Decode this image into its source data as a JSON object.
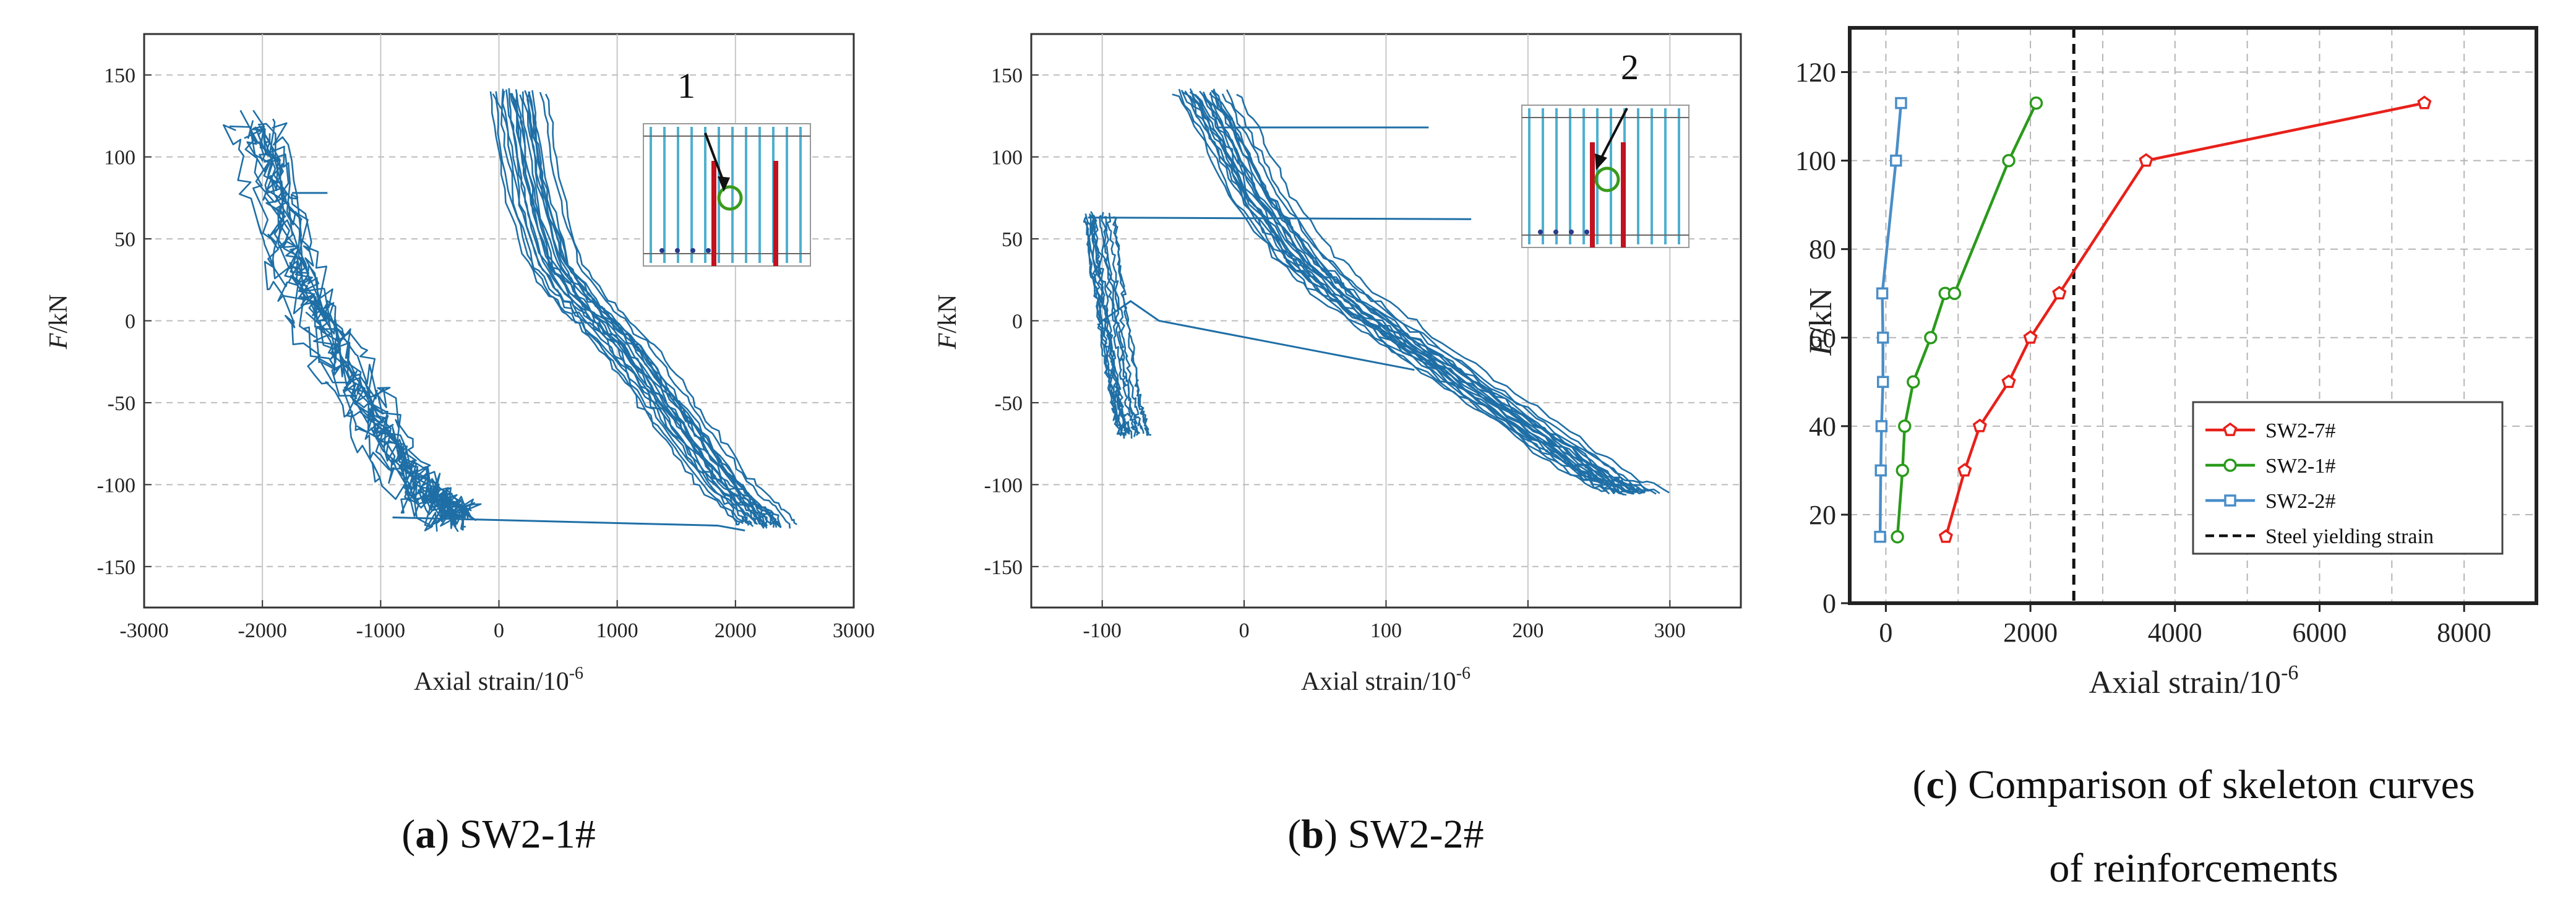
{
  "colors": {
    "hysteresis": "#1f6fa6",
    "sw2_7": "#e8201a",
    "sw2_1": "#2a9a1c",
    "sw2_2": "#4a8ec8",
    "yield": "#111111"
  },
  "chart_data": [
    {
      "id": "a",
      "type": "line",
      "caption_letter": "a",
      "caption_text": "SW2-1#",
      "ylabel_italic": "F",
      "ylabel_rest": "/kN",
      "xlabel_main": "Axial strain/10",
      "xlabel_exp": "-6",
      "xlim": [
        -3000,
        3000
      ],
      "ylim": [
        -175,
        175
      ],
      "xticks": [
        -3000,
        -2000,
        -1000,
        0,
        1000,
        2000,
        3000
      ],
      "yticks": [
        -150,
        -100,
        -50,
        0,
        50,
        100,
        150
      ],
      "grid": "solid vertical, dashed horizontal",
      "inset_marker": "1",
      "series": [
        {
          "values_description": "hysteresis loops",
          "branches": [
            {
              "x": [
                -2150,
                -2050,
                -1950,
                -1850,
                -1750,
                -1600,
                -1450,
                -1300,
                -1150,
                -1000,
                -850,
                -700,
                -600,
                -500,
                -450
              ],
              "y": [
                120,
                100,
                70,
                40,
                20,
                0,
                -20,
                -40,
                -60,
                -80,
                -95,
                -105,
                -110,
                -118,
                -120
              ]
            },
            {
              "x": [
                -10,
                50,
                150,
                300,
                500,
                700,
                900,
                1100,
                1300,
                1500,
                1700,
                1900,
                2050,
                2100
              ],
              "y": [
                140,
                110,
                70,
                35,
                15,
                0,
                -15,
                -35,
                -55,
                -75,
                -95,
                -110,
                -120,
                -125
              ]
            }
          ]
        }
      ]
    },
    {
      "id": "b",
      "type": "line",
      "caption_letter": "b",
      "caption_text": "SW2-2#",
      "ylabel_italic": "F",
      "ylabel_rest": "/kN",
      "xlabel_main": "Axial strain/10",
      "xlabel_exp": "-6",
      "xlim": [
        -150,
        350
      ],
      "ylim": [
        -175,
        175
      ],
      "xticks": [
        -100,
        0,
        100,
        200,
        300
      ],
      "yticks": [
        -150,
        -100,
        -50,
        0,
        50,
        100,
        150
      ],
      "grid": "solid vertical, dashed horizontal",
      "inset_marker": "2",
      "series": [
        {
          "values_description": "hysteresis loops",
          "branches": [
            {
              "x": [
                -110,
                -105,
                -100,
                -95,
                -90,
                -85
              ],
              "y": [
                65,
                30,
                0,
                -30,
                -55,
                -70
              ]
            },
            {
              "x": [
                -40,
                -20,
                0,
                30,
                60,
                100,
                150,
                200,
                240,
                265
              ],
              "y": [
                140,
                110,
                75,
                40,
                15,
                -10,
                -40,
                -70,
                -95,
                -105
              ]
            }
          ]
        }
      ]
    },
    {
      "id": "c",
      "type": "line",
      "caption_letter": "c",
      "caption_text": "Comparison of skeleton curves",
      "caption_text2": "of reinforcements",
      "ylabel_italic": "F",
      "ylabel_rest": "/kN",
      "xlabel_main": "Axial strain/10",
      "xlabel_exp": "-6",
      "xlim": [
        -500,
        9000
      ],
      "ylim": [
        0,
        130
      ],
      "xticks": [
        0,
        2000,
        4000,
        6000,
        8000
      ],
      "yticks": [
        0,
        20,
        40,
        60,
        80,
        100,
        120
      ],
      "grid": "dashed",
      "legend_position": "lower-right",
      "yield_strain": 2600,
      "series": [
        {
          "name": "SW2-7#",
          "marker": "pentagon",
          "x": [
            830,
            1090,
            1300,
            1700,
            2000,
            2400,
            3600,
            7450
          ],
          "y": [
            15,
            30,
            40,
            50,
            60,
            70,
            100,
            113
          ]
        },
        {
          "name": "SW2-1#",
          "marker": "circle",
          "x": [
            160,
            230,
            260,
            380,
            620,
            820,
            950,
            1700,
            2080
          ],
          "y": [
            15,
            30,
            40,
            50,
            60,
            70,
            70,
            100,
            113
          ]
        },
        {
          "name": "SW2-2#",
          "marker": "square",
          "x": [
            -80,
            -70,
            -60,
            -40,
            -40,
            -50,
            140,
            210
          ],
          "y": [
            15,
            30,
            40,
            50,
            60,
            70,
            100,
            113
          ]
        }
      ],
      "reference_line_label": "Steel yielding strain"
    }
  ]
}
